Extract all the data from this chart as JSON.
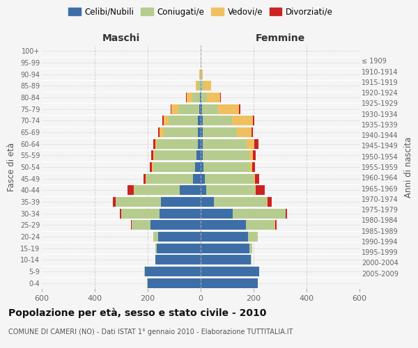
{
  "age_groups": [
    "0-4",
    "5-9",
    "10-14",
    "15-19",
    "20-24",
    "25-29",
    "30-34",
    "35-39",
    "40-44",
    "45-49",
    "50-54",
    "55-59",
    "60-64",
    "65-69",
    "70-74",
    "75-79",
    "80-84",
    "85-89",
    "90-94",
    "95-99",
    "100+"
  ],
  "birth_years": [
    "2005-2009",
    "2000-2004",
    "1995-1999",
    "1990-1994",
    "1985-1989",
    "1980-1984",
    "1975-1979",
    "1970-1974",
    "1965-1969",
    "1960-1964",
    "1955-1959",
    "1950-1954",
    "1945-1949",
    "1940-1944",
    "1935-1939",
    "1930-1934",
    "1925-1929",
    "1920-1924",
    "1915-1919",
    "1910-1914",
    "≤ 1909"
  ],
  "colors": {
    "celibi": "#3d6ea8",
    "coniugati": "#b5cc8e",
    "vedovi": "#f0c060",
    "divorziati": "#cc2222"
  },
  "males": {
    "celibi": [
      200,
      210,
      170,
      165,
      160,
      190,
      155,
      150,
      80,
      30,
      20,
      15,
      10,
      10,
      10,
      5,
      2,
      1,
      0,
      0,
      0
    ],
    "coniugati": [
      2,
      2,
      2,
      5,
      20,
      70,
      145,
      170,
      170,
      175,
      160,
      160,
      155,
      130,
      110,
      80,
      30,
      10,
      3,
      1,
      0
    ],
    "vedovi": [
      0,
      0,
      0,
      0,
      0,
      1,
      1,
      2,
      2,
      2,
      3,
      3,
      5,
      15,
      20,
      25,
      20,
      8,
      2,
      0,
      0
    ],
    "divorziati": [
      0,
      0,
      0,
      0,
      0,
      2,
      5,
      10,
      25,
      10,
      10,
      10,
      10,
      5,
      5,
      2,
      2,
      0,
      0,
      0,
      0
    ]
  },
  "females": {
    "celibi": [
      215,
      220,
      190,
      185,
      180,
      170,
      120,
      50,
      20,
      15,
      10,
      8,
      8,
      8,
      8,
      5,
      3,
      2,
      0,
      0,
      0
    ],
    "coniugati": [
      2,
      2,
      3,
      10,
      35,
      110,
      200,
      200,
      185,
      185,
      175,
      175,
      165,
      130,
      110,
      60,
      20,
      8,
      3,
      1,
      0
    ],
    "vedovi": [
      0,
      0,
      0,
      0,
      0,
      1,
      2,
      3,
      3,
      5,
      10,
      15,
      30,
      55,
      80,
      80,
      50,
      30,
      5,
      1,
      0
    ],
    "divorziati": [
      0,
      0,
      0,
      0,
      2,
      5,
      5,
      15,
      35,
      15,
      10,
      10,
      15,
      5,
      5,
      5,
      2,
      0,
      0,
      0,
      0
    ]
  },
  "title": "Popolazione per età, sesso e stato civile - 2010",
  "subtitle": "COMUNE DI CAMERI (NO) - Dati ISTAT 1° gennaio 2010 - Elaborazione TUTTITALIA.IT",
  "xlabel_maschi": "Maschi",
  "xlabel_femmine": "Femmine",
  "ylabel_left": "Fasce di età",
  "ylabel_right": "Anni di nascita",
  "xlim": 600,
  "background_color": "#f5f5f5",
  "grid_color": "#cccccc",
  "bar_height": 0.85
}
